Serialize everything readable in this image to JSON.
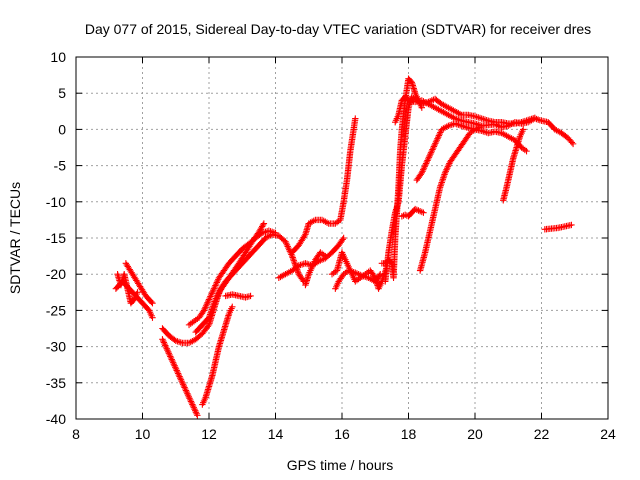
{
  "chart_data": {
    "type": "scatter",
    "title": "Day 077 of 2015, Sidereal Day-to-day VTEC variation (SDTVAR) for receiver dres",
    "xlabel": "GPS time / hours",
    "ylabel": "SDTVAR / TECUs",
    "xlim": [
      8,
      24
    ],
    "ylim": [
      -40,
      10
    ],
    "xticks": [
      8,
      10,
      12,
      14,
      16,
      18,
      20,
      22,
      24
    ],
    "yticks": [
      -40,
      -35,
      -30,
      -25,
      -20,
      -15,
      -10,
      -5,
      0,
      5,
      10
    ],
    "grid": true,
    "marker": "+",
    "color": "#ff0000",
    "series": [
      {
        "points": [
          [
            9.2,
            -22
          ],
          [
            9.4,
            -21
          ],
          [
            9.6,
            -22
          ],
          [
            9.8,
            -23
          ],
          [
            10.0,
            -24
          ],
          [
            10.2,
            -25
          ],
          [
            10.3,
            -26
          ]
        ]
      },
      {
        "points": [
          [
            9.25,
            -20
          ],
          [
            9.35,
            -21.5
          ],
          [
            9.45,
            -20
          ],
          [
            9.55,
            -22
          ],
          [
            9.65,
            -24
          ],
          [
            9.75,
            -23.5
          ],
          [
            9.85,
            -22.5
          ]
        ]
      },
      {
        "points": [
          [
            9.5,
            -18.5
          ],
          [
            9.7,
            -20
          ],
          [
            9.9,
            -21.5
          ],
          [
            10.1,
            -23
          ],
          [
            10.3,
            -24
          ]
        ]
      },
      {
        "points": [
          [
            10.6,
            -29
          ],
          [
            10.75,
            -30.5
          ],
          [
            10.9,
            -32
          ],
          [
            11.05,
            -33.5
          ],
          [
            11.2,
            -35
          ],
          [
            11.35,
            -36.5
          ],
          [
            11.5,
            -38
          ],
          [
            11.65,
            -39.5
          ]
        ]
      },
      {
        "points": [
          [
            10.6,
            -27.5
          ],
          [
            10.8,
            -28.5
          ],
          [
            11.0,
            -29.2
          ],
          [
            11.2,
            -29.5
          ],
          [
            11.4,
            -29.5
          ],
          [
            11.6,
            -29
          ],
          [
            11.8,
            -28.2
          ],
          [
            12.0,
            -27
          ],
          [
            12.1,
            -25.5
          ],
          [
            12.2,
            -24
          ],
          [
            12.35,
            -22
          ],
          [
            12.5,
            -21
          ],
          [
            12.7,
            -20
          ],
          [
            12.9,
            -19
          ],
          [
            13.1,
            -18
          ],
          [
            13.3,
            -17
          ],
          [
            13.5,
            -16
          ],
          [
            13.7,
            -15
          ],
          [
            13.9,
            -14.5
          ],
          [
            14.1,
            -14.7
          ],
          [
            14.3,
            -15.5
          ],
          [
            14.5,
            -17.5
          ],
          [
            14.7,
            -20
          ],
          [
            14.85,
            -21
          ]
        ]
      },
      {
        "points": [
          [
            11.4,
            -27
          ],
          [
            11.55,
            -26.5
          ],
          [
            11.7,
            -26
          ],
          [
            11.85,
            -25
          ],
          [
            12.0,
            -23.5
          ],
          [
            12.15,
            -22
          ],
          [
            12.3,
            -20.5
          ],
          [
            12.45,
            -19.5
          ],
          [
            12.6,
            -18.5
          ],
          [
            12.8,
            -17.5
          ],
          [
            13.0,
            -16.5
          ],
          [
            13.2,
            -15.8
          ],
          [
            13.4,
            -15
          ],
          [
            13.6,
            -14.3
          ],
          [
            13.8,
            -14
          ],
          [
            14.0,
            -14.3
          ]
        ]
      },
      {
        "points": [
          [
            11.6,
            -28
          ],
          [
            11.8,
            -27
          ],
          [
            12.0,
            -26
          ],
          [
            12.15,
            -24
          ],
          [
            12.3,
            -22.5
          ],
          [
            12.45,
            -21.5
          ],
          [
            12.6,
            -20.5
          ],
          [
            12.75,
            -19.5
          ],
          [
            12.9,
            -18.5
          ],
          [
            13.1,
            -17
          ],
          [
            13.3,
            -15.5
          ],
          [
            13.5,
            -14.2
          ],
          [
            13.65,
            -13
          ]
        ]
      },
      {
        "points": [
          [
            11.8,
            -38
          ],
          [
            11.9,
            -37
          ],
          [
            12.0,
            -35.5
          ],
          [
            12.1,
            -34
          ],
          [
            12.2,
            -32
          ],
          [
            12.3,
            -30
          ],
          [
            12.4,
            -28.5
          ],
          [
            12.5,
            -27
          ],
          [
            12.6,
            -25.5
          ],
          [
            12.7,
            -24.5
          ]
        ]
      },
      {
        "points": [
          [
            12.5,
            -23
          ],
          [
            12.7,
            -22.8
          ],
          [
            12.9,
            -23
          ],
          [
            13.1,
            -23.2
          ],
          [
            13.25,
            -23
          ]
        ]
      },
      {
        "points": [
          [
            14.1,
            -20.5
          ],
          [
            14.3,
            -20
          ],
          [
            14.5,
            -19.5
          ],
          [
            14.7,
            -18.8
          ],
          [
            14.9,
            -18.5
          ],
          [
            15.1,
            -18.8
          ],
          [
            15.3,
            -18.2
          ],
          [
            15.5,
            -17.8
          ],
          [
            15.7,
            -17
          ],
          [
            15.9,
            -16
          ],
          [
            16.05,
            -15
          ]
        ]
      },
      {
        "points": [
          [
            14.5,
            -17
          ],
          [
            14.7,
            -16
          ],
          [
            14.9,
            -14.5
          ],
          [
            15.0,
            -13
          ],
          [
            15.2,
            -12.5
          ],
          [
            15.4,
            -12.5
          ],
          [
            15.6,
            -13
          ],
          [
            15.8,
            -13
          ],
          [
            15.95,
            -12.5
          ],
          [
            16.05,
            -10
          ],
          [
            16.15,
            -7
          ],
          [
            16.25,
            -3
          ],
          [
            16.35,
            0
          ],
          [
            16.4,
            1.5
          ]
        ]
      },
      {
        "points": [
          [
            14.9,
            -21.5
          ],
          [
            15.0,
            -20
          ],
          [
            15.1,
            -19
          ],
          [
            15.2,
            -18
          ],
          [
            15.35,
            -17
          ],
          [
            15.5,
            -17.5
          ]
        ]
      },
      {
        "points": [
          [
            15.7,
            -20
          ],
          [
            15.85,
            -19.5
          ],
          [
            16.0,
            -17
          ],
          [
            16.1,
            -18
          ],
          [
            16.2,
            -19
          ],
          [
            16.3,
            -20
          ],
          [
            16.4,
            -21
          ],
          [
            16.55,
            -20.5
          ],
          [
            16.7,
            -20
          ],
          [
            16.85,
            -19.5
          ],
          [
            17.0,
            -20.5
          ],
          [
            17.1,
            -22
          ],
          [
            17.2,
            -21
          ],
          [
            17.35,
            -19
          ]
        ]
      },
      {
        "points": [
          [
            15.8,
            -22
          ],
          [
            15.9,
            -21
          ],
          [
            16.05,
            -20
          ],
          [
            16.2,
            -19.5
          ],
          [
            16.4,
            -19.8
          ],
          [
            16.6,
            -20.2
          ],
          [
            16.8,
            -20.5
          ],
          [
            17.0,
            -21
          ],
          [
            17.15,
            -20
          ]
        ]
      },
      {
        "points": [
          [
            17.2,
            -18.5
          ],
          [
            17.3,
            -18.5
          ],
          [
            17.4,
            -18
          ],
          [
            17.5,
            -18.5
          ],
          [
            17.55,
            -20.5
          ],
          [
            17.6,
            -15
          ],
          [
            17.7,
            -8
          ],
          [
            17.75,
            -3
          ],
          [
            17.8,
            0
          ],
          [
            17.9,
            4
          ],
          [
            18.0,
            7
          ],
          [
            18.1,
            6.5
          ],
          [
            18.2,
            5
          ],
          [
            18.3,
            4
          ],
          [
            18.4,
            3
          ]
        ]
      },
      {
        "points": [
          [
            17.3,
            -21
          ],
          [
            17.4,
            -17
          ],
          [
            17.5,
            -14
          ],
          [
            17.6,
            -11.5
          ],
          [
            17.7,
            -10
          ],
          [
            17.8,
            -5
          ],
          [
            17.9,
            -1
          ],
          [
            18.0,
            3
          ],
          [
            18.1,
            4.5
          ],
          [
            18.2,
            4.2
          ],
          [
            18.4,
            3.5
          ],
          [
            18.6,
            3.8
          ],
          [
            18.8,
            4.2
          ],
          [
            19.0,
            3.5
          ],
          [
            19.2,
            3
          ],
          [
            19.4,
            2.5
          ],
          [
            19.6,
            2
          ],
          [
            19.8,
            2
          ],
          [
            20.0,
            1.8
          ],
          [
            20.2,
            1.5
          ],
          [
            20.4,
            1.2
          ],
          [
            20.6,
            1
          ],
          [
            20.8,
            1
          ],
          [
            21.0,
            0.8
          ],
          [
            21.2,
            0.8
          ],
          [
            21.4,
            1
          ],
          [
            21.6,
            1.3
          ],
          [
            21.8,
            1.6
          ]
        ]
      },
      {
        "points": [
          [
            17.6,
            1
          ],
          [
            17.7,
            2
          ],
          [
            17.8,
            4
          ],
          [
            17.9,
            4.5
          ],
          [
            18.0,
            4
          ],
          [
            18.2,
            3.8
          ],
          [
            18.4,
            4
          ],
          [
            18.6,
            3.5
          ],
          [
            18.8,
            3
          ],
          [
            19.0,
            2.5
          ],
          [
            19.2,
            2
          ],
          [
            19.4,
            1.5
          ],
          [
            19.6,
            1.2
          ],
          [
            19.8,
            1
          ],
          [
            20.0,
            0.8
          ],
          [
            20.2,
            0.5
          ],
          [
            20.4,
            0.6
          ],
          [
            20.6,
            0.7
          ],
          [
            20.8,
            0.3
          ],
          [
            21.0,
            0.5
          ],
          [
            21.2,
            1
          ],
          [
            21.4,
            0.8
          ],
          [
            21.6,
            1
          ],
          [
            21.8,
            1.5
          ],
          [
            22.0,
            1.2
          ],
          [
            22.2,
            1
          ],
          [
            22.4,
            0
          ],
          [
            22.6,
            -0.5
          ],
          [
            22.8,
            -1.2
          ],
          [
            22.95,
            -2
          ]
        ]
      },
      {
        "points": [
          [
            18.25,
            -7
          ],
          [
            18.4,
            -6
          ],
          [
            18.55,
            -4.5
          ],
          [
            18.7,
            -3
          ],
          [
            18.85,
            -1.5
          ],
          [
            19.0,
            0
          ],
          [
            19.2,
            0.5
          ],
          [
            19.4,
            0.8
          ],
          [
            19.6,
            0.5
          ],
          [
            19.8,
            0.2
          ],
          [
            20.0,
            0
          ],
          [
            20.2,
            -0.2
          ],
          [
            20.4,
            -0.5
          ],
          [
            20.6,
            -0.3
          ],
          [
            20.8,
            -0.5
          ],
          [
            21.0,
            -1
          ],
          [
            21.2,
            -1.5
          ],
          [
            21.4,
            -2.5
          ],
          [
            21.55,
            -3
          ]
        ]
      },
      {
        "points": [
          [
            18.35,
            -19.5
          ],
          [
            18.5,
            -17
          ],
          [
            18.65,
            -14
          ],
          [
            18.8,
            -11
          ],
          [
            18.95,
            -8
          ],
          [
            19.1,
            -6
          ],
          [
            19.25,
            -4.5
          ],
          [
            19.4,
            -3.5
          ],
          [
            19.55,
            -2.5
          ],
          [
            19.7,
            -1.5
          ],
          [
            19.85,
            -0.5
          ],
          [
            20.0,
            0
          ],
          [
            20.15,
            0.3
          ]
        ]
      },
      {
        "points": [
          [
            17.8,
            -12
          ],
          [
            17.9,
            -11.8
          ],
          [
            18.0,
            -12
          ],
          [
            18.1,
            -11.5
          ],
          [
            18.2,
            -11
          ],
          [
            18.3,
            -11.2
          ],
          [
            18.45,
            -11.5
          ]
        ]
      },
      {
        "points": [
          [
            20.85,
            -9.8
          ],
          [
            20.95,
            -8
          ],
          [
            21.05,
            -6
          ],
          [
            21.15,
            -4
          ],
          [
            21.25,
            -2.5
          ],
          [
            21.35,
            -1
          ],
          [
            21.45,
            0
          ]
        ]
      },
      {
        "points": [
          [
            22.1,
            -13.8
          ],
          [
            22.3,
            -13.7
          ],
          [
            22.5,
            -13.6
          ],
          [
            22.7,
            -13.4
          ],
          [
            22.9,
            -13.2
          ]
        ]
      }
    ]
  }
}
